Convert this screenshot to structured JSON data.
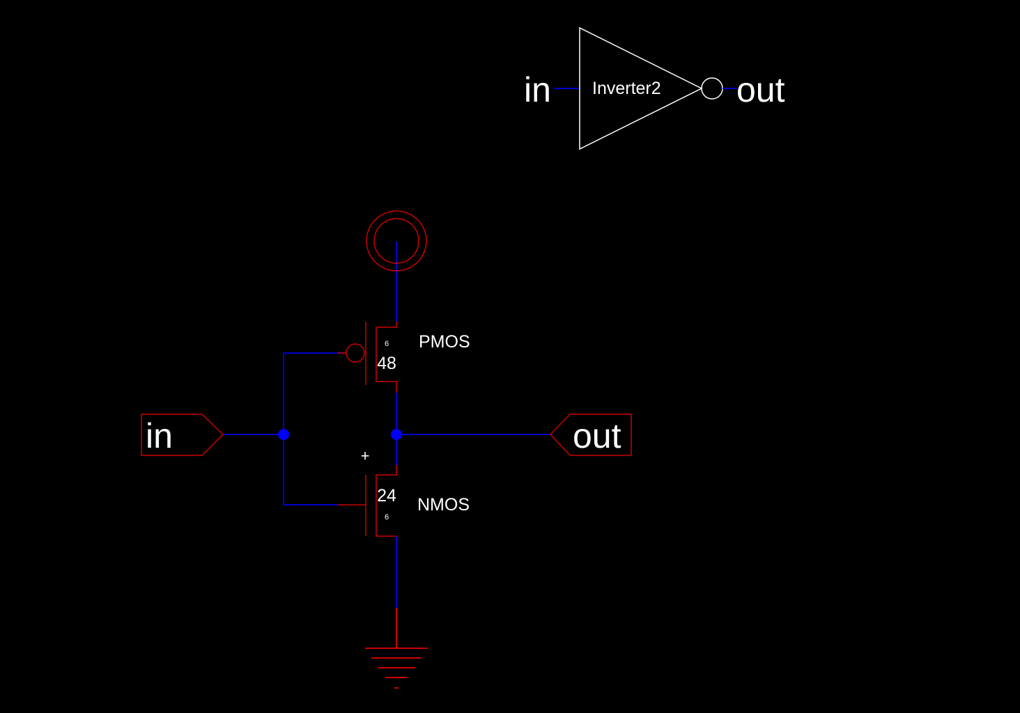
{
  "colors": {
    "background": "#000000",
    "wire": "#0000cc",
    "node": "#0000ff",
    "device": "#cc0000",
    "symbol": "#ffffff",
    "text": "#ffffff"
  },
  "symbol": {
    "name": "Inverter2",
    "input_pin": "in",
    "output_pin": "out"
  },
  "schematic": {
    "ports": {
      "input": "in",
      "output": "out"
    },
    "pmos": {
      "type_label": "PMOS",
      "width": "48",
      "length": "6"
    },
    "nmos": {
      "type_label": "NMOS",
      "width": "24",
      "length": "6"
    },
    "cursor_glyph": "+"
  }
}
